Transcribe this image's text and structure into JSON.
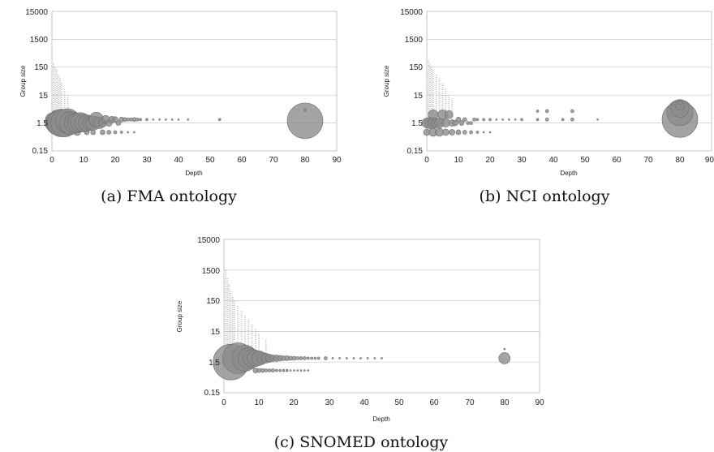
{
  "chart_data": [
    {
      "type": "scatter",
      "variant": "bubble",
      "caption": "(a) FMA ontology",
      "xlabel": "Depth",
      "ylabel": "Group size",
      "xlim": [
        0,
        90
      ],
      "x_ticks": [
        "0",
        "10",
        "20",
        "30",
        "40",
        "50",
        "60",
        "70",
        "80",
        "90"
      ],
      "y_scale": "log",
      "ylim": [
        0.15,
        15000
      ],
      "y_ticks": [
        "0.15",
        "1.5",
        "15",
        "150",
        "1500",
        "15000"
      ],
      "grid": "horizontal",
      "bubble_color": "#8c8c8c",
      "bubbles": [
        {
          "x": 0,
          "y": 1.2,
          "r": 6
        },
        {
          "x": 0,
          "y": 2,
          "r": 8
        },
        {
          "x": 1,
          "y": 1.5,
          "r": 12
        },
        {
          "x": 1,
          "y": 3,
          "r": 5
        },
        {
          "x": 2,
          "y": 1.5,
          "r": 15
        },
        {
          "x": 3,
          "y": 1.5,
          "r": 17
        },
        {
          "x": 4,
          "y": 1.5,
          "r": 17
        },
        {
          "x": 5,
          "y": 1.8,
          "r": 15
        },
        {
          "x": 6,
          "y": 1.5,
          "r": 14
        },
        {
          "x": 7,
          "y": 1.5,
          "r": 12
        },
        {
          "x": 8,
          "y": 1.5,
          "r": 12
        },
        {
          "x": 9,
          "y": 1.6,
          "r": 12
        },
        {
          "x": 10,
          "y": 1.5,
          "r": 11
        },
        {
          "x": 11,
          "y": 1.5,
          "r": 10
        },
        {
          "x": 12,
          "y": 1.5,
          "r": 9
        },
        {
          "x": 13,
          "y": 1.5,
          "r": 9
        },
        {
          "x": 14,
          "y": 2,
          "r": 9
        },
        {
          "x": 15,
          "y": 1.5,
          "r": 7
        },
        {
          "x": 16,
          "y": 1.5,
          "r": 5
        },
        {
          "x": 17,
          "y": 2,
          "r": 5
        },
        {
          "x": 18,
          "y": 1.5,
          "r": 4
        },
        {
          "x": 19,
          "y": 2,
          "r": 4
        },
        {
          "x": 20,
          "y": 2,
          "r": 3.5
        },
        {
          "x": 21,
          "y": 1.5,
          "r": 3
        },
        {
          "x": 22,
          "y": 2,
          "r": 3
        },
        {
          "x": 23,
          "y": 2,
          "r": 2.5
        },
        {
          "x": 24,
          "y": 2,
          "r": 2
        },
        {
          "x": 25,
          "y": 2,
          "r": 2
        },
        {
          "x": 26,
          "y": 2,
          "r": 2.5
        },
        {
          "x": 27,
          "y": 2,
          "r": 2
        },
        {
          "x": 28,
          "y": 2,
          "r": 1.5
        },
        {
          "x": 30,
          "y": 2,
          "r": 1.5
        },
        {
          "x": 32,
          "y": 2,
          "r": 1
        },
        {
          "x": 34,
          "y": 2,
          "r": 1
        },
        {
          "x": 36,
          "y": 2,
          "r": 1
        },
        {
          "x": 38,
          "y": 2,
          "r": 1
        },
        {
          "x": 40,
          "y": 2,
          "r": 1
        },
        {
          "x": 43,
          "y": 2,
          "r": 1
        },
        {
          "x": 53,
          "y": 2,
          "r": 1.5
        },
        {
          "x": 80,
          "y": 1.8,
          "r": 22
        },
        {
          "x": 80,
          "y": 4.5,
          "r": 1.5
        }
      ],
      "low_row": [
        {
          "x": 5,
          "y": 0.7,
          "r": 4
        },
        {
          "x": 8,
          "y": 0.7,
          "r": 4
        },
        {
          "x": 11,
          "y": 0.7,
          "r": 3
        },
        {
          "x": 13,
          "y": 0.7,
          "r": 3
        },
        {
          "x": 16,
          "y": 0.7,
          "r": 3
        },
        {
          "x": 18,
          "y": 0.7,
          "r": 2.5
        },
        {
          "x": 20,
          "y": 0.7,
          "r": 2
        },
        {
          "x": 22,
          "y": 0.7,
          "r": 1.5
        },
        {
          "x": 24,
          "y": 0.7,
          "r": 1
        },
        {
          "x": 26,
          "y": 0.7,
          "r": 1
        }
      ],
      "spikes": [
        {
          "x": 0.5,
          "y_max": 200
        },
        {
          "x": 1,
          "y_max": 150
        },
        {
          "x": 1.5,
          "y_max": 120
        },
        {
          "x": 2,
          "y_max": 80
        },
        {
          "x": 2.5,
          "y_max": 60
        },
        {
          "x": 3,
          "y_max": 40
        },
        {
          "x": 4,
          "y_max": 25
        },
        {
          "x": 5,
          "y_max": 15
        }
      ]
    },
    {
      "type": "scatter",
      "variant": "bubble",
      "caption": "(b) NCI ontology",
      "xlabel": "Depth",
      "ylabel": "Group size",
      "xlim": [
        0,
        90
      ],
      "x_ticks": [
        "0",
        "10",
        "20",
        "30",
        "40",
        "50",
        "60",
        "70",
        "80",
        "90"
      ],
      "y_scale": "log",
      "ylim": [
        0.15,
        15000
      ],
      "y_ticks": [
        "0.15",
        "1.5",
        "15",
        "150",
        "1500",
        "15000"
      ],
      "grid": "horizontal",
      "bubble_color": "#8c8c8c",
      "bubbles": [
        {
          "x": 0,
          "y": 1.5,
          "r": 6
        },
        {
          "x": 1,
          "y": 1.5,
          "r": 7
        },
        {
          "x": 2,
          "y": 1.5,
          "r": 7
        },
        {
          "x": 2,
          "y": 3,
          "r": 6
        },
        {
          "x": 3,
          "y": 1.5,
          "r": 6
        },
        {
          "x": 4,
          "y": 1.5,
          "r": 6
        },
        {
          "x": 5,
          "y": 3,
          "r": 6
        },
        {
          "x": 6,
          "y": 1.5,
          "r": 5
        },
        {
          "x": 7,
          "y": 3,
          "r": 5
        },
        {
          "x": 8,
          "y": 1.5,
          "r": 4
        },
        {
          "x": 9,
          "y": 1.5,
          "r": 3.5
        },
        {
          "x": 10,
          "y": 2,
          "r": 3
        },
        {
          "x": 11,
          "y": 1.5,
          "r": 3
        },
        {
          "x": 12,
          "y": 2,
          "r": 2.5
        },
        {
          "x": 13,
          "y": 1.5,
          "r": 2
        },
        {
          "x": 14,
          "y": 1.5,
          "r": 2
        },
        {
          "x": 15,
          "y": 2,
          "r": 2
        },
        {
          "x": 16,
          "y": 2,
          "r": 1.5
        },
        {
          "x": 18,
          "y": 2,
          "r": 1.5
        },
        {
          "x": 20,
          "y": 2,
          "r": 1.5
        },
        {
          "x": 22,
          "y": 2,
          "r": 1
        },
        {
          "x": 24,
          "y": 2,
          "r": 1
        },
        {
          "x": 26,
          "y": 2,
          "r": 1
        },
        {
          "x": 28,
          "y": 2,
          "r": 1
        },
        {
          "x": 30,
          "y": 2,
          "r": 1.5
        },
        {
          "x": 35,
          "y": 2,
          "r": 1.5
        },
        {
          "x": 35,
          "y": 4,
          "r": 1.5
        },
        {
          "x": 38,
          "y": 2,
          "r": 2
        },
        {
          "x": 38,
          "y": 4,
          "r": 2
        },
        {
          "x": 43,
          "y": 2,
          "r": 1.5
        },
        {
          "x": 46,
          "y": 2,
          "r": 2
        },
        {
          "x": 46,
          "y": 4,
          "r": 2
        },
        {
          "x": 54,
          "y": 2,
          "r": 1
        },
        {
          "x": 80,
          "y": 2,
          "r": 22
        },
        {
          "x": 80,
          "y": 3.5,
          "r": 16
        },
        {
          "x": 80,
          "y": 5,
          "r": 11
        },
        {
          "x": 80,
          "y": 6.5,
          "r": 6
        },
        {
          "x": 80,
          "y": 8,
          "r": 2.5
        }
      ],
      "low_row": [
        {
          "x": 0,
          "y": 0.7,
          "r": 4
        },
        {
          "x": 2,
          "y": 0.7,
          "r": 5
        },
        {
          "x": 4,
          "y": 0.7,
          "r": 5
        },
        {
          "x": 6,
          "y": 0.7,
          "r": 4
        },
        {
          "x": 8,
          "y": 0.7,
          "r": 3.5
        },
        {
          "x": 10,
          "y": 0.7,
          "r": 3
        },
        {
          "x": 12,
          "y": 0.7,
          "r": 2.5
        },
        {
          "x": 14,
          "y": 0.7,
          "r": 2
        },
        {
          "x": 16,
          "y": 0.7,
          "r": 1.5
        },
        {
          "x": 18,
          "y": 0.7,
          "r": 1
        },
        {
          "x": 20,
          "y": 0.7,
          "r": 1
        }
      ],
      "spikes": [
        {
          "x": 0.5,
          "y_max": 250
        },
        {
          "x": 1,
          "y_max": 200
        },
        {
          "x": 1.5,
          "y_max": 150
        },
        {
          "x": 2,
          "y_max": 120
        },
        {
          "x": 3,
          "y_max": 80
        },
        {
          "x": 4,
          "y_max": 60
        },
        {
          "x": 5,
          "y_max": 40
        },
        {
          "x": 6,
          "y_max": 25
        },
        {
          "x": 7,
          "y_max": 15
        },
        {
          "x": 8,
          "y_max": 10
        }
      ]
    },
    {
      "type": "scatter",
      "variant": "bubble",
      "caption": "(c) SNOMED ontology",
      "xlabel": "Depth",
      "ylabel": "Group size",
      "xlim": [
        0,
        90
      ],
      "x_ticks": [
        "0",
        "10",
        "20",
        "30",
        "40",
        "50",
        "60",
        "70",
        "80",
        "90"
      ],
      "y_scale": "log",
      "ylim": [
        0.15,
        15000
      ],
      "y_ticks": [
        "0.15",
        "1.5",
        "15",
        "150",
        "1500",
        "15000"
      ],
      "grid": "horizontal",
      "bubble_color": "#8c8c8c",
      "bubbles": [
        {
          "x": 2,
          "y": 1.5,
          "r": 22
        },
        {
          "x": 4,
          "y": 2,
          "r": 19
        },
        {
          "x": 6,
          "y": 2,
          "r": 16
        },
        {
          "x": 7,
          "y": 2,
          "r": 13
        },
        {
          "x": 8,
          "y": 2,
          "r": 11
        },
        {
          "x": 9,
          "y": 2,
          "r": 10
        },
        {
          "x": 10,
          "y": 2,
          "r": 9
        },
        {
          "x": 11,
          "y": 2,
          "r": 7
        },
        {
          "x": 12,
          "y": 2,
          "r": 6
        },
        {
          "x": 13,
          "y": 2,
          "r": 5
        },
        {
          "x": 14,
          "y": 2,
          "r": 4
        },
        {
          "x": 15,
          "y": 2,
          "r": 4
        },
        {
          "x": 16,
          "y": 2,
          "r": 3.5
        },
        {
          "x": 17,
          "y": 2,
          "r": 3
        },
        {
          "x": 18,
          "y": 2,
          "r": 3
        },
        {
          "x": 19,
          "y": 2,
          "r": 2.5
        },
        {
          "x": 20,
          "y": 2,
          "r": 2.5
        },
        {
          "x": 21,
          "y": 2,
          "r": 2
        },
        {
          "x": 22,
          "y": 2,
          "r": 2
        },
        {
          "x": 23,
          "y": 2,
          "r": 2
        },
        {
          "x": 24,
          "y": 2,
          "r": 1.5
        },
        {
          "x": 25,
          "y": 2,
          "r": 1.5
        },
        {
          "x": 26,
          "y": 2,
          "r": 1.5
        },
        {
          "x": 27,
          "y": 2,
          "r": 1.5
        },
        {
          "x": 29,
          "y": 2,
          "r": 2
        },
        {
          "x": 31,
          "y": 2,
          "r": 1
        },
        {
          "x": 33,
          "y": 2,
          "r": 1
        },
        {
          "x": 35,
          "y": 2,
          "r": 1
        },
        {
          "x": 37,
          "y": 2,
          "r": 1
        },
        {
          "x": 39,
          "y": 2,
          "r": 1
        },
        {
          "x": 41,
          "y": 2,
          "r": 1
        },
        {
          "x": 43,
          "y": 2,
          "r": 1
        },
        {
          "x": 45,
          "y": 2,
          "r": 1
        },
        {
          "x": 80,
          "y": 2,
          "r": 7
        },
        {
          "x": 80,
          "y": 4,
          "r": 1
        }
      ],
      "low_row": [
        {
          "x": 9,
          "y": 0.8,
          "r": 3
        },
        {
          "x": 10,
          "y": 0.8,
          "r": 2.5
        },
        {
          "x": 11,
          "y": 0.8,
          "r": 2.5
        },
        {
          "x": 12,
          "y": 0.8,
          "r": 2
        },
        {
          "x": 13,
          "y": 0.8,
          "r": 2
        },
        {
          "x": 14,
          "y": 0.8,
          "r": 2
        },
        {
          "x": 15,
          "y": 0.8,
          "r": 1.5
        },
        {
          "x": 16,
          "y": 0.8,
          "r": 1.5
        },
        {
          "x": 17,
          "y": 0.8,
          "r": 1.5
        },
        {
          "x": 18,
          "y": 0.8,
          "r": 1.5
        },
        {
          "x": 19,
          "y": 0.8,
          "r": 1
        },
        {
          "x": 20,
          "y": 0.8,
          "r": 1
        },
        {
          "x": 21,
          "y": 0.8,
          "r": 1
        },
        {
          "x": 22,
          "y": 0.8,
          "r": 1
        },
        {
          "x": 23,
          "y": 0.8,
          "r": 1
        },
        {
          "x": 24,
          "y": 0.8,
          "r": 1
        }
      ],
      "spikes": [
        {
          "x": 0.5,
          "y_max": 1500
        },
        {
          "x": 1,
          "y_max": 800
        },
        {
          "x": 1.5,
          "y_max": 500
        },
        {
          "x": 2,
          "y_max": 300
        },
        {
          "x": 2.5,
          "y_max": 200
        },
        {
          "x": 3,
          "y_max": 150
        },
        {
          "x": 4,
          "y_max": 100
        },
        {
          "x": 5,
          "y_max": 70
        },
        {
          "x": 6,
          "y_max": 50
        },
        {
          "x": 7,
          "y_max": 35
        },
        {
          "x": 8,
          "y_max": 25
        },
        {
          "x": 9,
          "y_max": 18
        },
        {
          "x": 10,
          "y_max": 12
        },
        {
          "x": 12,
          "y_max": 8
        }
      ]
    }
  ]
}
